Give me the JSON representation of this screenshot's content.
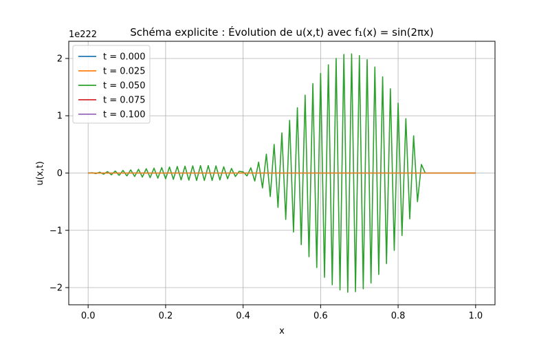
{
  "chart_data": {
    "type": "line",
    "title": "Schéma explicite : Évolution de u(x,t) avec f₁(x) = sin(2πx)",
    "xlabel": "x",
    "ylabel": "u(x,t)",
    "y_offset_label": "1e222",
    "xlim": [
      -0.05,
      1.05
    ],
    "ylim": [
      -2.3,
      2.3
    ],
    "x_ticks": [
      0.0,
      0.2,
      0.4,
      0.6,
      0.8,
      1.0
    ],
    "x_tick_labels": [
      "0.0",
      "0.2",
      "0.4",
      "0.6",
      "0.8",
      "1.0"
    ],
    "y_ticks": [
      -2,
      -1,
      0,
      1,
      2
    ],
    "y_tick_labels": [
      "−2",
      "−1",
      "0",
      "1",
      "2"
    ],
    "grid": true,
    "legend_position": "top-left",
    "colors": {
      "t0": "#1f77b4",
      "t1": "#ff7f0e",
      "t2": "#2ca02c",
      "t3": "#d62728",
      "t4": "#9467bd"
    },
    "series": [
      {
        "name": "t = 0.000",
        "color": "#1f77b4",
        "x": [
          0,
          1
        ],
        "y": [
          0,
          0
        ]
      },
      {
        "name": "t = 0.025",
        "color": "#ff7f0e",
        "x": [
          0,
          1
        ],
        "y": [
          0,
          0
        ]
      },
      {
        "name": "t = 0.050",
        "color": "#2ca02c",
        "x": [
          0.0,
          0.01,
          0.02,
          0.03,
          0.04,
          0.05,
          0.06,
          0.07,
          0.08,
          0.09,
          0.1,
          0.11,
          0.12,
          0.13,
          0.14,
          0.15,
          0.16,
          0.17,
          0.18,
          0.19,
          0.2,
          0.21,
          0.22,
          0.23,
          0.24,
          0.25,
          0.26,
          0.27,
          0.28,
          0.29,
          0.3,
          0.31,
          0.32,
          0.33,
          0.34,
          0.35,
          0.36,
          0.37,
          0.38,
          0.39,
          0.4,
          0.41,
          0.42,
          0.43,
          0.44,
          0.45,
          0.46,
          0.47,
          0.48,
          0.49,
          0.5,
          0.51,
          0.52,
          0.53,
          0.54,
          0.55,
          0.56,
          0.57,
          0.58,
          0.59,
          0.6,
          0.61,
          0.62,
          0.63,
          0.64,
          0.65,
          0.66,
          0.67,
          0.68,
          0.69,
          0.7,
          0.71,
          0.72,
          0.73,
          0.74,
          0.75,
          0.76,
          0.77,
          0.78,
          0.79,
          0.8,
          0.81,
          0.82,
          0.83,
          0.84,
          0.85,
          0.86,
          0.87,
          0.88,
          0.89,
          0.9,
          0.91,
          0.92,
          0.93,
          0.94,
          0.95,
          0.96,
          0.97,
          0.98,
          0.99,
          1.0
        ],
        "y": [
          0.0,
          0.005,
          -0.01,
          0.015,
          -0.02,
          0.025,
          -0.03,
          0.035,
          -0.04,
          0.045,
          -0.05,
          0.055,
          -0.06,
          0.065,
          -0.07,
          0.075,
          -0.08,
          0.085,
          -0.09,
          0.095,
          -0.1,
          0.105,
          -0.11,
          0.115,
          -0.12,
          0.12,
          -0.125,
          0.125,
          -0.13,
          0.13,
          -0.13,
          0.13,
          -0.13,
          0.125,
          -0.12,
          0.11,
          -0.1,
          0.08,
          -0.06,
          0.03,
          0.02,
          -0.05,
          0.09,
          -0.14,
          0.19,
          -0.26,
          0.33,
          -0.41,
          0.5,
          -0.6,
          0.7,
          -0.81,
          0.92,
          -1.03,
          1.14,
          -1.25,
          1.36,
          -1.46,
          1.56,
          -1.65,
          1.74,
          -1.82,
          1.89,
          -1.95,
          2.0,
          -2.04,
          2.07,
          -2.08,
          2.08,
          -2.07,
          2.05,
          -2.02,
          1.98,
          -1.92,
          1.85,
          -1.77,
          1.68,
          -1.58,
          1.47,
          -1.35,
          1.22,
          -1.09,
          0.95,
          -0.8,
          0.65,
          -0.5,
          0.15,
          0.0,
          0,
          0,
          0,
          0,
          0,
          0,
          0,
          0,
          0,
          0,
          0,
          0,
          0
        ]
      },
      {
        "name": "t = 0.075",
        "color": "#d62728",
        "x": [],
        "y": []
      },
      {
        "name": "t = 0.100",
        "color": "#9467bd",
        "x": [],
        "y": []
      }
    ]
  }
}
